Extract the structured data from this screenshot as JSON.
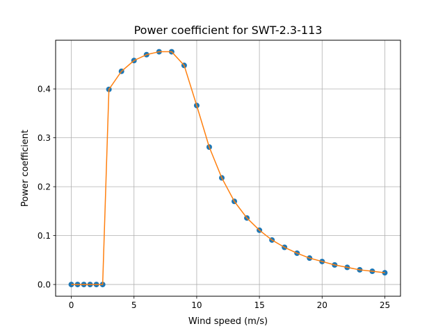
{
  "chart_data": {
    "type": "line",
    "title": "Power coefficient for SWT-2.3-113",
    "xlabel": "Wind speed (m/s)",
    "ylabel": "Power coefficient",
    "xlim": [
      -1.25,
      26.25
    ],
    "ylim": [
      -0.024,
      0.4995
    ],
    "xticks": [
      0,
      5,
      10,
      15,
      20,
      25
    ],
    "yticks": [
      0.0,
      0.1,
      0.2,
      0.3,
      0.4
    ],
    "xtick_labels": [
      "0",
      "5",
      "10",
      "15",
      "20",
      "25"
    ],
    "ytick_labels": [
      "0.0",
      "0.1",
      "0.2",
      "0.3",
      "0.4"
    ],
    "grid": true,
    "series": [
      {
        "line_color": "#ff7f0e",
        "marker_color": "#1f77b4",
        "x": [
          0,
          0.5,
          1,
          1.5,
          2,
          2.5,
          3,
          4,
          5,
          6,
          7,
          8,
          9,
          10,
          11,
          12,
          13,
          14,
          15,
          16,
          17,
          18,
          19,
          20,
          21,
          22,
          23,
          24,
          25
        ],
        "y": [
          0,
          0,
          0,
          0,
          0,
          0,
          0.399,
          0.436,
          0.458,
          0.47,
          0.476,
          0.476,
          0.448,
          0.366,
          0.281,
          0.218,
          0.17,
          0.136,
          0.111,
          0.091,
          0.076,
          0.064,
          0.054,
          0.047,
          0.04,
          0.035,
          0.03,
          0.027,
          0.024
        ]
      }
    ]
  }
}
